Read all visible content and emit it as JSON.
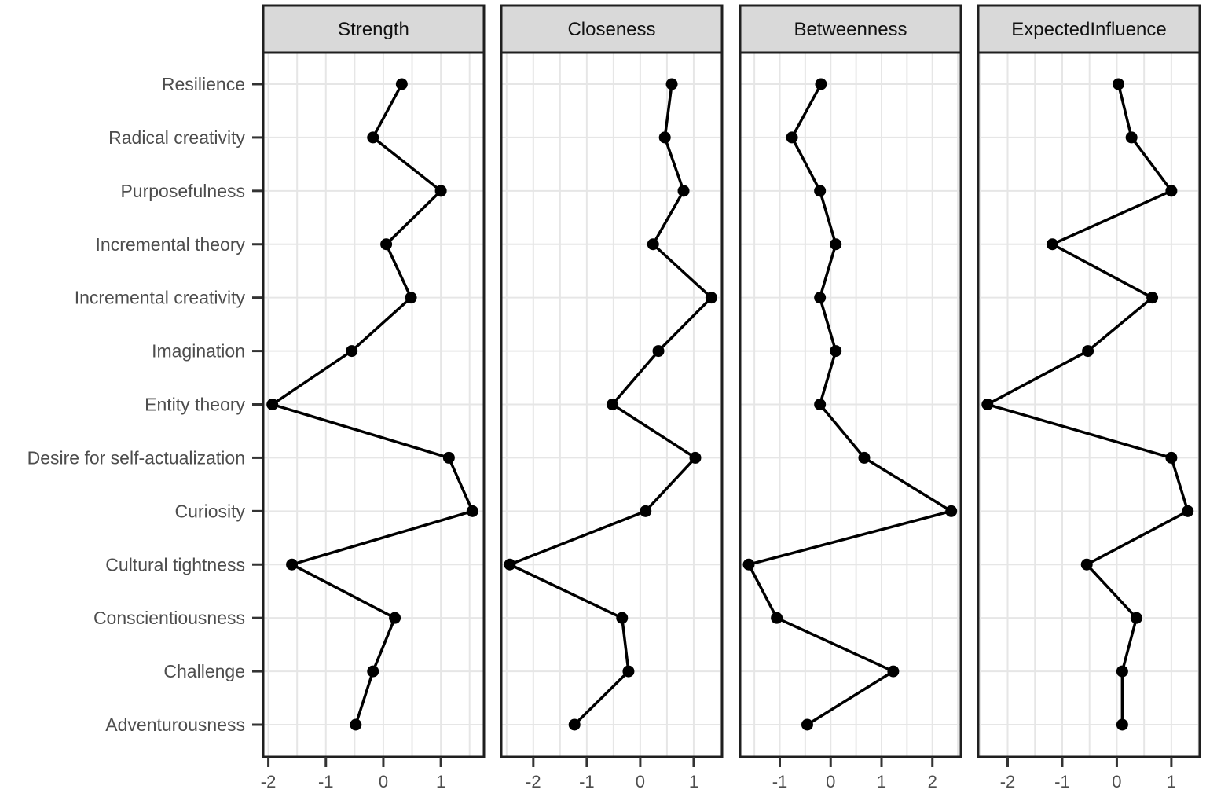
{
  "chart_data": {
    "type": "line",
    "title": "",
    "xlabel": "",
    "ylabel": "",
    "legend_position": "none",
    "grid": "on",
    "grid_step": 0.5,
    "categories": [
      "Resilience",
      "Radical creativity",
      "Purposefulness",
      "Incremental theory",
      "Incremental creativity",
      "Imagination",
      "Entity theory",
      "Desire for self-actualization",
      "Curiosity",
      "Cultural tightness",
      "Conscientiousness",
      "Challenge",
      "Adventurousness"
    ],
    "facets": [
      {
        "title": "Strength",
        "xlim": [
          -2.09,
          1.75
        ],
        "xticks": [
          -2,
          -1,
          0,
          1
        ],
        "values": [
          0.32,
          -0.18,
          1.0,
          0.05,
          0.48,
          -0.55,
          -1.93,
          1.14,
          1.55,
          -1.59,
          0.2,
          -0.18,
          -0.48
        ]
      },
      {
        "title": "Closeness",
        "xlim": [
          -2.6,
          1.53
        ],
        "xticks": [
          -2,
          -1,
          0,
          1
        ],
        "values": [
          0.59,
          0.46,
          0.81,
          0.24,
          1.33,
          0.34,
          -0.52,
          1.03,
          0.1,
          -2.44,
          -0.34,
          -0.22,
          -1.23
        ]
      },
      {
        "title": "Betweenness",
        "xlim": [
          -1.78,
          2.56
        ],
        "xticks": [
          -1,
          0,
          1,
          2
        ],
        "values": [
          -0.19,
          -0.76,
          -0.21,
          0.1,
          -0.21,
          0.1,
          -0.21,
          0.66,
          2.37,
          -1.61,
          -1.06,
          1.23,
          -0.46
        ]
      },
      {
        "title": "ExpectedInfluence",
        "xlim": [
          -2.54,
          1.52
        ],
        "xticks": [
          -2,
          -1,
          0,
          1
        ],
        "values": [
          0.03,
          0.27,
          1.0,
          -1.18,
          0.65,
          -0.53,
          -2.37,
          1.0,
          1.3,
          -0.55,
          0.36,
          0.1,
          0.1
        ]
      }
    ],
    "colors": {
      "line": "#000000",
      "point": "#000000",
      "grid": "#e6e6e6",
      "panel_border": "#1f1f1f",
      "tick": "#333333",
      "strip_fill": "#d9d9d9",
      "strip_text": "#111111",
      "axis_text": "#4d4d4d",
      "background": "#ffffff"
    }
  }
}
